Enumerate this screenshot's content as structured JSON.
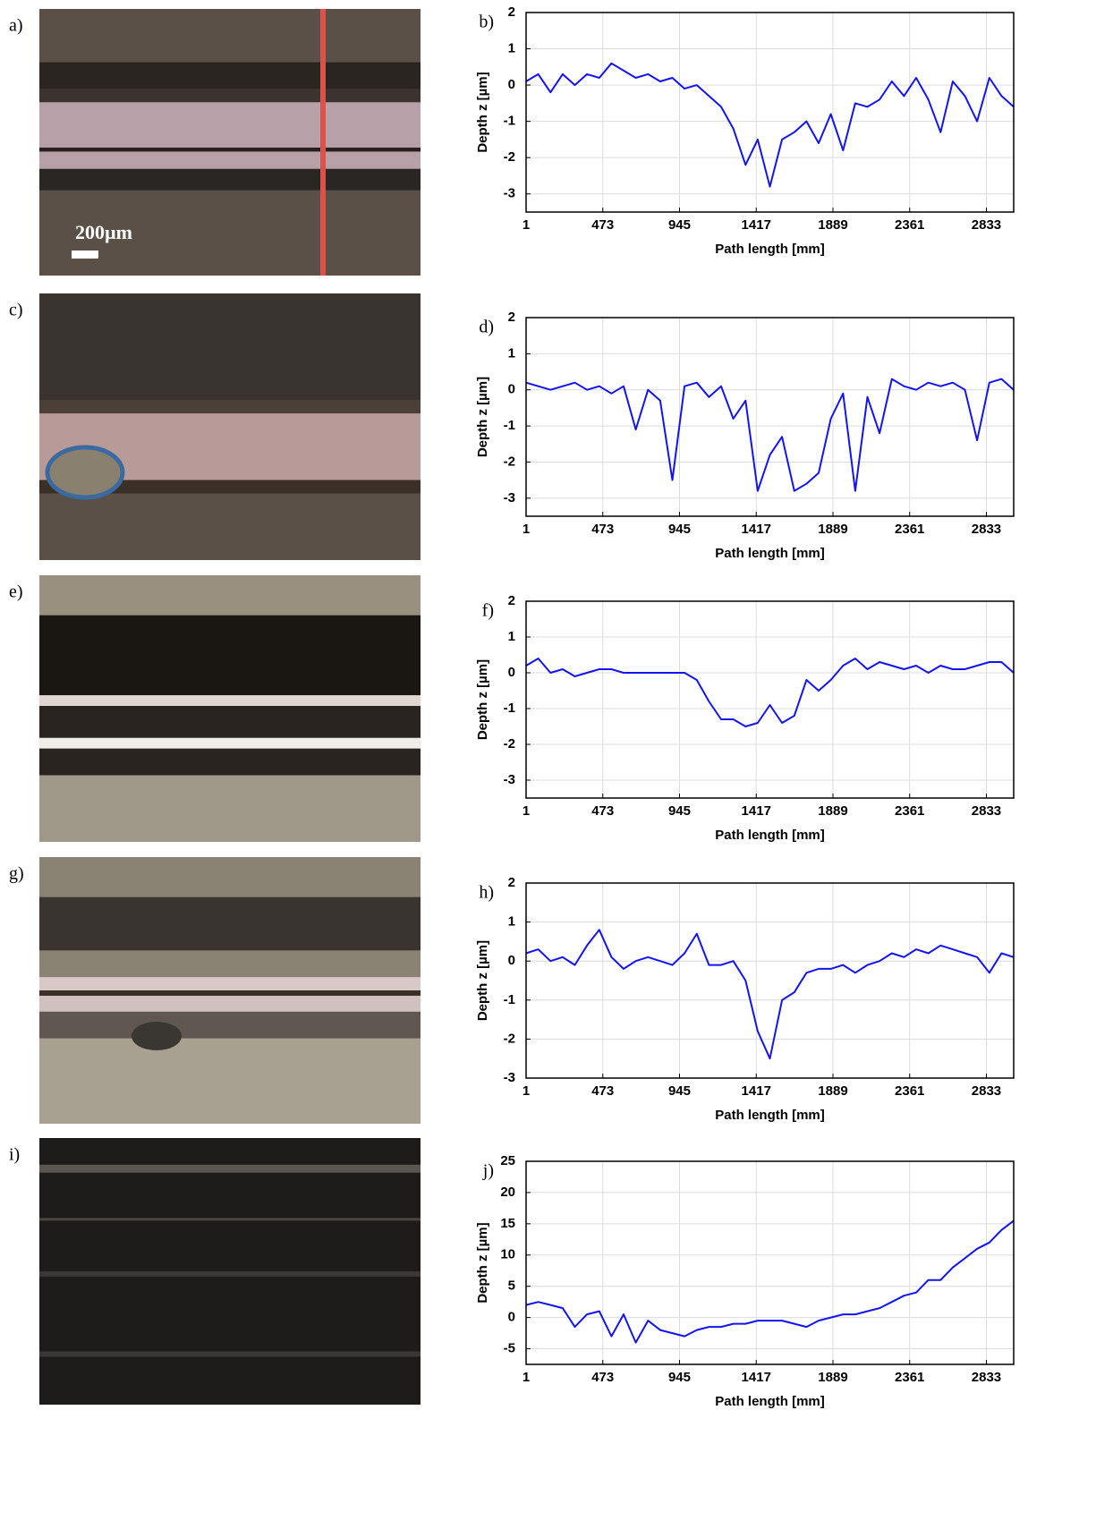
{
  "images": [
    {
      "label": "a)",
      "scale_label": "200µm"
    },
    {
      "label": "c)"
    },
    {
      "label": "e)"
    },
    {
      "label": "g)"
    },
    {
      "label": "i)"
    }
  ],
  "chart_data": [
    {
      "type": "line",
      "panel_label": "b)",
      "ylabel": "Depth z [µm]",
      "xlabel": "Path length [mm]",
      "color": "#1414f0",
      "grid": true,
      "xlim": [
        1,
        3001
      ],
      "xticks": [
        1,
        473,
        945,
        1417,
        1889,
        2361,
        2833
      ],
      "ylim": [
        -3.5,
        2
      ],
      "yticks": [
        -3,
        -2,
        -1,
        0,
        1,
        2
      ],
      "x": [
        1,
        76,
        151,
        226,
        301,
        376,
        451,
        526,
        601,
        676,
        751,
        826,
        901,
        976,
        1051,
        1126,
        1201,
        1276,
        1351,
        1426,
        1501,
        1576,
        1651,
        1726,
        1801,
        1876,
        1951,
        2026,
        2101,
        2176,
        2251,
        2326,
        2401,
        2476,
        2551,
        2626,
        2701,
        2776,
        2851,
        2926,
        3001
      ],
      "values": [
        0.1,
        0.3,
        -0.2,
        0.3,
        0.0,
        0.3,
        0.2,
        0.6,
        0.4,
        0.2,
        0.3,
        0.1,
        0.2,
        -0.1,
        0.0,
        -0.3,
        -0.6,
        -1.2,
        -2.2,
        -1.5,
        -2.8,
        -1.5,
        -1.3,
        -1.0,
        -1.6,
        -0.8,
        -1.8,
        -0.5,
        -0.6,
        -0.4,
        0.1,
        -0.3,
        0.2,
        -0.4,
        -1.3,
        0.1,
        -0.3,
        -1.0,
        0.2,
        -0.3,
        -0.6
      ]
    },
    {
      "type": "line",
      "panel_label": "d)",
      "ylabel": "Depth z [µm]",
      "xlabel": "Path length [mm]",
      "color": "#1414f0",
      "grid": true,
      "xlim": [
        1,
        3001
      ],
      "xticks": [
        1,
        473,
        945,
        1417,
        1889,
        2361,
        2833
      ],
      "ylim": [
        -3.5,
        2
      ],
      "yticks": [
        -3,
        -2,
        -1,
        0,
        1,
        2
      ],
      "x": [
        1,
        76,
        151,
        226,
        301,
        376,
        451,
        526,
        601,
        676,
        751,
        826,
        901,
        976,
        1051,
        1126,
        1201,
        1276,
        1351,
        1426,
        1501,
        1576,
        1651,
        1726,
        1801,
        1876,
        1951,
        2026,
        2101,
        2176,
        2251,
        2326,
        2401,
        2476,
        2551,
        2626,
        2701,
        2776,
        2851,
        2926,
        3001
      ],
      "values": [
        0.2,
        0.1,
        0.0,
        0.1,
        0.2,
        0.0,
        0.1,
        -0.1,
        0.1,
        -1.1,
        0.0,
        -0.3,
        -2.5,
        0.1,
        0.2,
        -0.2,
        0.1,
        -0.8,
        -0.3,
        -2.8,
        -1.8,
        -1.3,
        -2.8,
        -2.6,
        -2.3,
        -0.8,
        -0.1,
        -2.8,
        -0.2,
        -1.2,
        0.3,
        0.1,
        0.0,
        0.2,
        0.1,
        0.2,
        0.0,
        -1.4,
        0.2,
        0.3,
        0.0
      ]
    },
    {
      "type": "line",
      "panel_label": "f)",
      "ylabel": "Depth z [µm]",
      "xlabel": "Path length [mm]",
      "color": "#1414f0",
      "grid": true,
      "xlim": [
        1,
        3001
      ],
      "xticks": [
        1,
        473,
        945,
        1417,
        1889,
        2361,
        2833
      ],
      "ylim": [
        -3.5,
        2
      ],
      "yticks": [
        -3,
        -2,
        -1,
        0,
        1,
        2
      ],
      "x": [
        1,
        76,
        151,
        226,
        301,
        376,
        451,
        526,
        601,
        676,
        751,
        826,
        901,
        976,
        1051,
        1126,
        1201,
        1276,
        1351,
        1426,
        1501,
        1576,
        1651,
        1726,
        1801,
        1876,
        1951,
        2026,
        2101,
        2176,
        2251,
        2326,
        2401,
        2476,
        2551,
        2626,
        2701,
        2776,
        2851,
        2926,
        3001
      ],
      "values": [
        0.2,
        0.4,
        0.0,
        0.1,
        -0.1,
        0.0,
        0.1,
        0.1,
        0.0,
        0.0,
        0.0,
        0.0,
        0.0,
        0.0,
        -0.2,
        -0.8,
        -1.3,
        -1.3,
        -1.5,
        -1.4,
        -0.9,
        -1.4,
        -1.2,
        -0.2,
        -0.5,
        -0.2,
        0.2,
        0.4,
        0.1,
        0.3,
        0.2,
        0.1,
        0.2,
        0.0,
        0.2,
        0.1,
        0.1,
        0.2,
        0.3,
        0.3,
        0.0
      ]
    },
    {
      "type": "line",
      "panel_label": "h)",
      "ylabel": "Depth z [µm]",
      "xlabel": "Path length [mm]",
      "color": "#1414f0",
      "grid": true,
      "xlim": [
        1,
        3001
      ],
      "xticks": [
        1,
        473,
        945,
        1417,
        1889,
        2361,
        2833
      ],
      "ylim": [
        -3,
        2
      ],
      "yticks": [
        -3,
        -2,
        -1,
        0,
        1,
        2
      ],
      "x": [
        1,
        76,
        151,
        226,
        301,
        376,
        451,
        526,
        601,
        676,
        751,
        826,
        901,
        976,
        1051,
        1126,
        1201,
        1276,
        1351,
        1426,
        1501,
        1576,
        1651,
        1726,
        1801,
        1876,
        1951,
        2026,
        2101,
        2176,
        2251,
        2326,
        2401,
        2476,
        2551,
        2626,
        2701,
        2776,
        2851,
        2926,
        3001
      ],
      "values": [
        0.2,
        0.3,
        0.0,
        0.1,
        -0.1,
        0.4,
        0.8,
        0.1,
        -0.2,
        0.0,
        0.1,
        0.0,
        -0.1,
        0.2,
        0.7,
        -0.1,
        -0.1,
        0.0,
        -0.5,
        -1.8,
        -2.5,
        -1.0,
        -0.8,
        -0.3,
        -0.2,
        -0.2,
        -0.1,
        -0.3,
        -0.1,
        0.0,
        0.2,
        0.1,
        0.3,
        0.2,
        0.4,
        0.3,
        0.2,
        0.1,
        -0.3,
        0.2,
        0.1
      ]
    },
    {
      "type": "line",
      "panel_label": "j)",
      "ylabel": "Depth z [µm]",
      "xlabel": "Path length [mm]",
      "color": "#1414f0",
      "grid": true,
      "xlim": [
        1,
        3001
      ],
      "xticks": [
        1,
        473,
        945,
        1417,
        1889,
        2361,
        2833
      ],
      "ylim": [
        -7.5,
        25
      ],
      "yticks": [
        -5,
        0,
        5,
        10,
        15,
        20,
        25
      ],
      "x": [
        1,
        76,
        151,
        226,
        301,
        376,
        451,
        526,
        601,
        676,
        751,
        826,
        901,
        976,
        1051,
        1126,
        1201,
        1276,
        1351,
        1426,
        1501,
        1576,
        1651,
        1726,
        1801,
        1876,
        1951,
        2026,
        2101,
        2176,
        2251,
        2326,
        2401,
        2476,
        2551,
        2626,
        2701,
        2776,
        2851,
        2926,
        3001
      ],
      "values": [
        2,
        2.5,
        2,
        1.5,
        -1.5,
        0.5,
        1,
        -3,
        0.5,
        -4,
        -0.5,
        -2,
        -2.5,
        -3,
        -2,
        -1.5,
        -1.5,
        -1,
        -1,
        -0.5,
        -0.5,
        -0.5,
        -1,
        -1.5,
        -0.5,
        0,
        0.5,
        0.5,
        1,
        1.5,
        2.5,
        3.5,
        4,
        6,
        6,
        8,
        9.5,
        11,
        12,
        14,
        15.5
      ]
    }
  ]
}
